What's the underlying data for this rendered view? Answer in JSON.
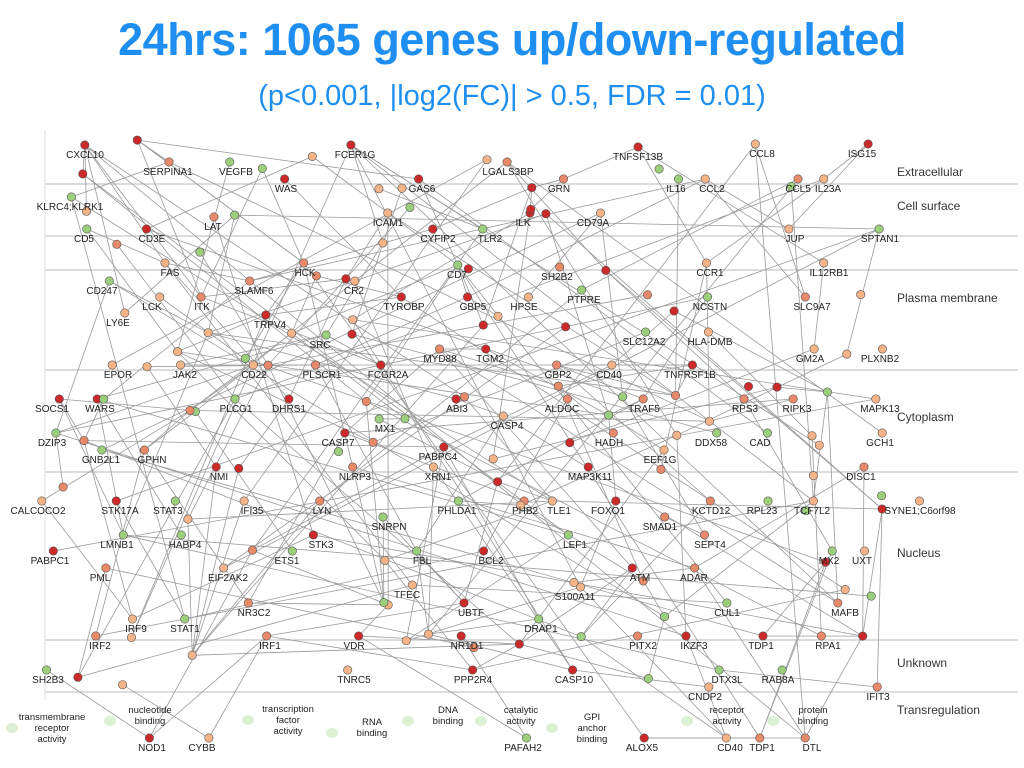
{
  "title": "24hrs: 1065 genes up/down-regulated",
  "subtitle": "(p<0.001, |log2(FC)| > 0.5, FDR = 0.01)",
  "colors": {
    "red": "#cc2a2a",
    "salmon": "#e88a6a",
    "peach": "#f4b488",
    "green": "#9ccf7c",
    "edge": "#9a9a9a",
    "band": "#c8c8c8"
  },
  "locations": [
    "Extracellular",
    "Cell surface",
    "Plasma membrane",
    "Cytoplasm",
    "Nucleus",
    "Unknown",
    "Transregulation"
  ],
  "genes": [
    "CXCL10",
    "SERPINA1",
    "VEGFB",
    "FCER1G",
    "LGALS3BP",
    "TNFSF13B",
    "CCL8",
    "ISG15",
    "KLRC4;KLRK1",
    "WAS",
    "GAS6",
    "GRN",
    "IL16",
    "CCL2",
    "CCL5",
    "IL23A",
    "CD5",
    "CD3E",
    "LAT",
    "ICAM1",
    "CYFIP2",
    "TLR2",
    "ILK",
    "CD79A",
    "JUP",
    "SPTAN1",
    "CD247",
    "FAS",
    "HCK",
    "CD7",
    "SH2B2",
    "CCR1",
    "IL12RB1",
    "LCK",
    "ITK",
    "SLAMF6",
    "CR2",
    "TYROBP",
    "GBP5",
    "HPSE",
    "PTPRE",
    "NCSTN",
    "SLC9A7",
    "LY6E",
    "TRPV4",
    "SRC",
    "MYD88",
    "TGM2",
    "SLC12A2",
    "HLA-DMB",
    "GM2A",
    "PLXNB2",
    "EPOR",
    "JAK2",
    "CD22",
    "PLSCR1",
    "FCGR2A",
    "GBP2",
    "CD40",
    "TNFRSF1B",
    "SOCS1",
    "WARS",
    "PLCG1",
    "DHRS1",
    "ABI3",
    "ALDOC",
    "TRAF5",
    "RPS3",
    "RIPK3",
    "MAPK13",
    "DZIP3",
    "MX1",
    "CASP4",
    "HADH",
    "DDX58",
    "CAD",
    "CASP7",
    "PABPC4",
    "EEF1G",
    "GCH1",
    "GNB2L1",
    "GPHN",
    "NMI",
    "NLRP3",
    "XRN1",
    "MAP3K11",
    "DISC1",
    "CALCOCO2",
    "STK17A",
    "STAT3",
    "IFI35",
    "LYN",
    "PHLDA1",
    "PHB2",
    "TLE1",
    "FOXO1",
    "KCTD12",
    "RPL23",
    "TCF7L2",
    "SYNE1;C6orf98",
    "SNRPN",
    "SMAD1",
    "LMNB1",
    "HABP4",
    "STK3",
    "SEPT4",
    "PABPC1",
    "MX2",
    "UXT",
    "PML",
    "EIF2AK2",
    "ETS1",
    "FBL",
    "BCL2",
    "LEF1",
    "ATM",
    "ADAR",
    "TFEC",
    "S100A11",
    "NR3C2",
    "CUL1",
    "MAFB",
    "IRF9",
    "STAT1",
    "UBTF",
    "DRAP1",
    "IRF2",
    "IRF1",
    "VDR",
    "NR1D1",
    "PITX2",
    "IKZF3",
    "TDP1",
    "RPA1",
    "SH2B3",
    "TNRC5",
    "PPP2R4",
    "CASP10",
    "DTX3L",
    "RAB8A",
    "IFIT3",
    "CNDP2",
    "NOD1",
    "CYBB",
    "PAFAH2",
    "ALOX5",
    "CD40",
    "TDP1",
    "DTL"
  ],
  "functions": [
    "transmembrane\nreceptor\nactivity",
    "nucleotide\nbinding",
    "transcription\nfactor\nactivity",
    "RNA\nbinding",
    "DNA\nbinding",
    "catalytic\nactivity",
    "GPI\nanchor\nbinding",
    "receptor\nactivity",
    "protein\nbinding"
  ]
}
